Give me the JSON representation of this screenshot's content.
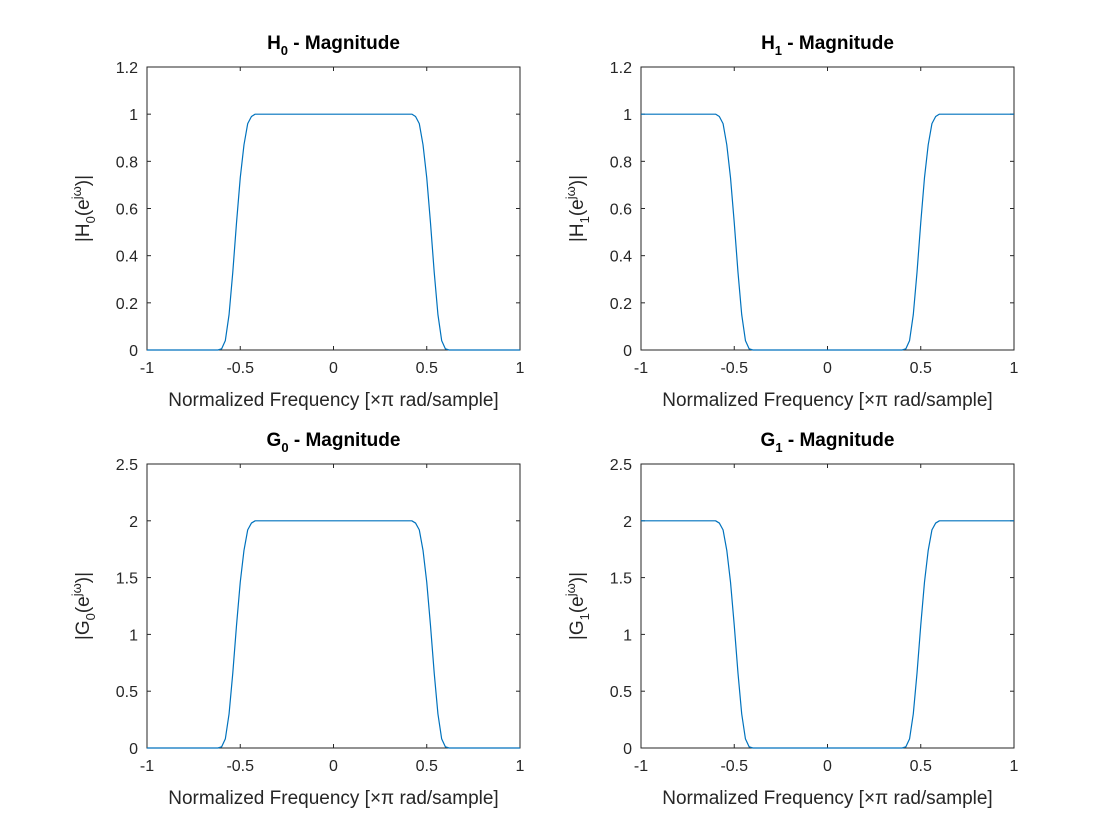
{
  "figure": {
    "background": "#ffffff",
    "line_color": "#0072bd",
    "axis_color": "#262626"
  },
  "chart_data": [
    {
      "type": "line",
      "title": "H0 - Magnitude",
      "title_parts": {
        "base": "H",
        "sub": "0",
        "rest": " - Magnitude"
      },
      "xlabel": "Normalized Frequency [×π rad/sample]",
      "ylabel": "|H0(e^jω)|",
      "ylabel_parts": {
        "pre": "|H",
        "sub": "0",
        "mid": "(e",
        "sup": "jω",
        "post": ")|"
      },
      "xlim": [
        -1,
        1
      ],
      "ylim": [
        0,
        1.2
      ],
      "xticks": [
        -1,
        -0.5,
        0,
        0.5,
        1
      ],
      "xtick_labels": [
        "-1",
        "-0.5",
        "0",
        "0.5",
        "1"
      ],
      "yticks": [
        0,
        0.2,
        0.4,
        0.6,
        0.8,
        1,
        1.2
      ],
      "ytick_labels": [
        "0",
        "0.2",
        "0.4",
        "0.6",
        "0.8",
        "1",
        "1.2"
      ],
      "grid": false,
      "series": [
        {
          "x": [
            -1,
            -0.62,
            -0.6,
            -0.58,
            -0.56,
            -0.54,
            -0.52,
            -0.5,
            -0.48,
            -0.46,
            -0.44,
            -0.42,
            -0.4,
            0.4,
            0.42,
            0.44,
            0.46,
            0.48,
            0.5,
            0.52,
            0.54,
            0.56,
            0.58,
            0.6,
            0.62,
            1
          ],
          "y": [
            0,
            0,
            0.005,
            0.04,
            0.15,
            0.33,
            0.54,
            0.73,
            0.87,
            0.96,
            0.99,
            1,
            1,
            1,
            1,
            0.99,
            0.96,
            0.87,
            0.73,
            0.54,
            0.33,
            0.15,
            0.04,
            0.005,
            0,
            0
          ]
        }
      ]
    },
    {
      "type": "line",
      "title": "H1 - Magnitude",
      "title_parts": {
        "base": "H",
        "sub": "1",
        "rest": " - Magnitude"
      },
      "xlabel": "Normalized Frequency [×π rad/sample]",
      "ylabel": "|H1(e^jω)|",
      "ylabel_parts": {
        "pre": "|H",
        "sub": "1",
        "mid": "(e",
        "sup": "jω",
        "post": ")|"
      },
      "xlim": [
        -1,
        1
      ],
      "ylim": [
        0,
        1.2
      ],
      "xticks": [
        -1,
        -0.5,
        0,
        0.5,
        1
      ],
      "xtick_labels": [
        "-1",
        "-0.5",
        "0",
        "0.5",
        "1"
      ],
      "yticks": [
        0,
        0.2,
        0.4,
        0.6,
        0.8,
        1,
        1.2
      ],
      "ytick_labels": [
        "0",
        "0.2",
        "0.4",
        "0.6",
        "0.8",
        "1",
        "1.2"
      ],
      "grid": false,
      "series": [
        {
          "x": [
            -1,
            -0.6,
            -0.58,
            -0.56,
            -0.54,
            -0.52,
            -0.5,
            -0.48,
            -0.46,
            -0.44,
            -0.42,
            -0.4,
            -0.38,
            0.38,
            0.4,
            0.42,
            0.44,
            0.46,
            0.48,
            0.5,
            0.52,
            0.54,
            0.56,
            0.58,
            0.6,
            1
          ],
          "y": [
            1,
            1,
            0.99,
            0.96,
            0.87,
            0.73,
            0.54,
            0.33,
            0.15,
            0.04,
            0.005,
            0,
            0,
            0,
            0,
            0.005,
            0.04,
            0.15,
            0.33,
            0.54,
            0.73,
            0.87,
            0.96,
            0.99,
            1,
            1
          ]
        }
      ]
    },
    {
      "type": "line",
      "title": "G0 - Magnitude",
      "title_parts": {
        "base": "G",
        "sub": "0",
        "rest": " - Magnitude"
      },
      "xlabel": "Normalized Frequency [×π rad/sample]",
      "ylabel": "|G0(e^jω)|",
      "ylabel_parts": {
        "pre": "|G",
        "sub": "0",
        "mid": "(e",
        "sup": "jω",
        "post": ")|"
      },
      "xlim": [
        -1,
        1
      ],
      "ylim": [
        0,
        2.5
      ],
      "xticks": [
        -1,
        -0.5,
        0,
        0.5,
        1
      ],
      "xtick_labels": [
        "-1",
        "-0.5",
        "0",
        "0.5",
        "1"
      ],
      "yticks": [
        0,
        0.5,
        1,
        1.5,
        2,
        2.5
      ],
      "ytick_labels": [
        "0",
        "0.5",
        "1",
        "1.5",
        "2",
        "2.5"
      ],
      "grid": false,
      "series": [
        {
          "x": [
            -1,
            -0.62,
            -0.6,
            -0.58,
            -0.56,
            -0.54,
            -0.52,
            -0.5,
            -0.48,
            -0.46,
            -0.44,
            -0.42,
            -0.4,
            0.4,
            0.42,
            0.44,
            0.46,
            0.48,
            0.5,
            0.52,
            0.54,
            0.56,
            0.58,
            0.6,
            0.62,
            1
          ],
          "y": [
            0,
            0,
            0.01,
            0.08,
            0.3,
            0.66,
            1.08,
            1.46,
            1.74,
            1.92,
            1.98,
            2,
            2,
            2,
            2,
            1.98,
            1.92,
            1.74,
            1.46,
            1.08,
            0.66,
            0.3,
            0.08,
            0.01,
            0,
            0
          ]
        }
      ]
    },
    {
      "type": "line",
      "title": "G1 - Magnitude",
      "title_parts": {
        "base": "G",
        "sub": "1",
        "rest": " - Magnitude"
      },
      "xlabel": "Normalized Frequency [×π rad/sample]",
      "ylabel": "|G1(e^jω)|",
      "ylabel_parts": {
        "pre": "|G",
        "sub": "1",
        "mid": "(e",
        "sup": "jω",
        "post": ")|"
      },
      "xlim": [
        -1,
        1
      ],
      "ylim": [
        0,
        2.5
      ],
      "xticks": [
        -1,
        -0.5,
        0,
        0.5,
        1
      ],
      "xtick_labels": [
        "-1",
        "-0.5",
        "0",
        "0.5",
        "1"
      ],
      "yticks": [
        0,
        0.5,
        1,
        1.5,
        2,
        2.5
      ],
      "ytick_labels": [
        "0",
        "0.5",
        "1",
        "1.5",
        "2",
        "2.5"
      ],
      "grid": false,
      "series": [
        {
          "x": [
            -1,
            -0.6,
            -0.58,
            -0.56,
            -0.54,
            -0.52,
            -0.5,
            -0.48,
            -0.46,
            -0.44,
            -0.42,
            -0.4,
            -0.38,
            0.38,
            0.4,
            0.42,
            0.44,
            0.46,
            0.48,
            0.5,
            0.52,
            0.54,
            0.56,
            0.58,
            0.6,
            1
          ],
          "y": [
            2,
            2,
            1.98,
            1.92,
            1.74,
            1.46,
            1.08,
            0.66,
            0.3,
            0.08,
            0.01,
            0,
            0,
            0,
            0,
            0.01,
            0.08,
            0.3,
            0.66,
            1.08,
            1.46,
            1.74,
            1.92,
            1.98,
            2,
            2
          ]
        }
      ]
    }
  ]
}
